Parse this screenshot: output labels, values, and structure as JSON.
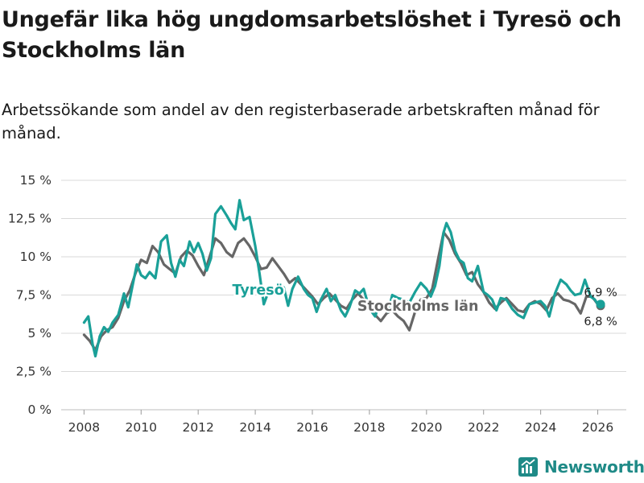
{
  "title": "Ungefär lika hög ungdomsarbetslöshet i Tyresö och Stockholms län",
  "subtitle": "Arbetssökande som andel av den registerbaserade arbetskraften månad för månad.",
  "brand": {
    "name": "Newsworthy",
    "icon": "bar-chart-logo-icon",
    "color": "#1f8a87"
  },
  "chart_data": {
    "type": "line",
    "title": "Ungefär lika hög ungdomsarbetslöshet i Tyresö och Stockholms län",
    "xlabel": "",
    "ylabel": "",
    "xlim": [
      2007.2,
      2027.0
    ],
    "ylim": [
      0,
      15
    ],
    "grid": true,
    "x_ticks": [
      2008,
      2010,
      2012,
      2014,
      2016,
      2018,
      2020,
      2022,
      2024,
      2026
    ],
    "x_tick_labels": [
      "2008",
      "2010",
      "2012",
      "2014",
      "2016",
      "2018",
      "2020",
      "2022",
      "2024",
      "2026"
    ],
    "y_ticks": [
      0,
      2.5,
      5,
      7.5,
      10,
      12.5,
      15
    ],
    "y_tick_labels": [
      "0 %",
      "2,5 %",
      "5 %",
      "7,5 %",
      "10 %",
      "12,5 %",
      "15 %"
    ],
    "series": [
      {
        "name": "Stockholms län",
        "color": "#666666",
        "label": "Stockholms län",
        "end_label": "6,8 %",
        "points": [
          [
            2008.0,
            4.9
          ],
          [
            2008.2,
            4.5
          ],
          [
            2008.4,
            3.9
          ],
          [
            2008.6,
            4.8
          ],
          [
            2008.8,
            5.2
          ],
          [
            2009.0,
            5.4
          ],
          [
            2009.2,
            6.0
          ],
          [
            2009.4,
            7.1
          ],
          [
            2009.6,
            7.8
          ],
          [
            2009.8,
            8.9
          ],
          [
            2010.0,
            9.8
          ],
          [
            2010.2,
            9.6
          ],
          [
            2010.4,
            10.7
          ],
          [
            2010.6,
            10.3
          ],
          [
            2010.8,
            9.5
          ],
          [
            2011.0,
            9.2
          ],
          [
            2011.2,
            8.9
          ],
          [
            2011.4,
            10.0
          ],
          [
            2011.6,
            10.4
          ],
          [
            2011.8,
            10.1
          ],
          [
            2012.0,
            9.4
          ],
          [
            2012.2,
            8.8
          ],
          [
            2012.4,
            10.0
          ],
          [
            2012.6,
            11.2
          ],
          [
            2012.8,
            10.9
          ],
          [
            2013.0,
            10.3
          ],
          [
            2013.2,
            10.0
          ],
          [
            2013.4,
            10.9
          ],
          [
            2013.6,
            11.2
          ],
          [
            2013.8,
            10.7
          ],
          [
            2014.0,
            10.0
          ],
          [
            2014.2,
            9.2
          ],
          [
            2014.4,
            9.3
          ],
          [
            2014.6,
            9.9
          ],
          [
            2014.8,
            9.4
          ],
          [
            2015.0,
            8.9
          ],
          [
            2015.2,
            8.3
          ],
          [
            2015.4,
            8.6
          ],
          [
            2015.6,
            8.2
          ],
          [
            2015.8,
            7.8
          ],
          [
            2016.0,
            7.4
          ],
          [
            2016.2,
            6.9
          ],
          [
            2016.4,
            7.3
          ],
          [
            2016.6,
            7.6
          ],
          [
            2016.8,
            7.2
          ],
          [
            2017.0,
            6.8
          ],
          [
            2017.2,
            6.6
          ],
          [
            2017.4,
            7.2
          ],
          [
            2017.6,
            7.6
          ],
          [
            2017.8,
            7.2
          ],
          [
            2018.0,
            6.6
          ],
          [
            2018.2,
            6.2
          ],
          [
            2018.4,
            5.8
          ],
          [
            2018.6,
            6.3
          ],
          [
            2018.8,
            6.5
          ],
          [
            2019.0,
            6.1
          ],
          [
            2019.2,
            5.8
          ],
          [
            2019.4,
            5.2
          ],
          [
            2019.6,
            6.4
          ],
          [
            2019.8,
            7.2
          ],
          [
            2020.0,
            7.3
          ],
          [
            2020.2,
            7.9
          ],
          [
            2020.4,
            9.8
          ],
          [
            2020.6,
            11.6
          ],
          [
            2020.8,
            11.1
          ],
          [
            2021.0,
            10.2
          ],
          [
            2021.2,
            9.6
          ],
          [
            2021.4,
            8.8
          ],
          [
            2021.6,
            9.0
          ],
          [
            2021.8,
            8.2
          ],
          [
            2022.0,
            7.7
          ],
          [
            2022.2,
            7.0
          ],
          [
            2022.4,
            6.6
          ],
          [
            2022.6,
            7.0
          ],
          [
            2022.8,
            7.3
          ],
          [
            2023.0,
            6.9
          ],
          [
            2023.2,
            6.5
          ],
          [
            2023.4,
            6.4
          ],
          [
            2023.6,
            6.9
          ],
          [
            2023.8,
            7.1
          ],
          [
            2024.0,
            6.9
          ],
          [
            2024.2,
            6.5
          ],
          [
            2024.4,
            7.3
          ],
          [
            2024.6,
            7.6
          ],
          [
            2024.8,
            7.2
          ],
          [
            2025.0,
            7.1
          ],
          [
            2025.2,
            6.9
          ],
          [
            2025.4,
            6.3
          ],
          [
            2025.6,
            7.4
          ],
          [
            2025.8,
            7.4
          ],
          [
            2026.0,
            6.9
          ],
          [
            2026.1,
            6.8
          ]
        ]
      },
      {
        "name": "Tyresö",
        "color": "#1aa098",
        "label": "Tyresö",
        "end_label": "6,9 %",
        "points": [
          [
            2008.0,
            5.7
          ],
          [
            2008.15,
            6.1
          ],
          [
            2008.3,
            4.3
          ],
          [
            2008.4,
            3.5
          ],
          [
            2008.55,
            4.8
          ],
          [
            2008.7,
            5.4
          ],
          [
            2008.85,
            5.1
          ],
          [
            2009.0,
            5.7
          ],
          [
            2009.2,
            6.2
          ],
          [
            2009.4,
            7.6
          ],
          [
            2009.55,
            6.7
          ],
          [
            2009.7,
            8.1
          ],
          [
            2009.85,
            9.5
          ],
          [
            2010.0,
            8.8
          ],
          [
            2010.15,
            8.6
          ],
          [
            2010.3,
            9.0
          ],
          [
            2010.5,
            8.6
          ],
          [
            2010.7,
            11.0
          ],
          [
            2010.9,
            11.4
          ],
          [
            2011.05,
            9.6
          ],
          [
            2011.2,
            8.7
          ],
          [
            2011.35,
            9.8
          ],
          [
            2011.5,
            9.4
          ],
          [
            2011.7,
            11.0
          ],
          [
            2011.85,
            10.3
          ],
          [
            2012.0,
            10.9
          ],
          [
            2012.15,
            10.2
          ],
          [
            2012.3,
            9.1
          ],
          [
            2012.45,
            9.9
          ],
          [
            2012.6,
            12.8
          ],
          [
            2012.8,
            13.3
          ],
          [
            2013.0,
            12.7
          ],
          [
            2013.15,
            12.2
          ],
          [
            2013.3,
            11.8
          ],
          [
            2013.45,
            13.7
          ],
          [
            2013.6,
            12.4
          ],
          [
            2013.8,
            12.6
          ],
          [
            2014.0,
            10.7
          ],
          [
            2014.15,
            8.9
          ],
          [
            2014.3,
            6.9
          ],
          [
            2014.5,
            7.9
          ],
          [
            2014.65,
            7.7
          ],
          [
            2014.8,
            8.1
          ],
          [
            2015.0,
            8.0
          ],
          [
            2015.15,
            6.8
          ],
          [
            2015.3,
            7.9
          ],
          [
            2015.5,
            8.7
          ],
          [
            2015.7,
            7.9
          ],
          [
            2015.85,
            7.5
          ],
          [
            2016.0,
            7.3
          ],
          [
            2016.15,
            6.4
          ],
          [
            2016.3,
            7.2
          ],
          [
            2016.5,
            7.9
          ],
          [
            2016.65,
            7.1
          ],
          [
            2016.8,
            7.5
          ],
          [
            2017.0,
            6.5
          ],
          [
            2017.15,
            6.1
          ],
          [
            2017.3,
            6.7
          ],
          [
            2017.5,
            7.8
          ],
          [
            2017.65,
            7.6
          ],
          [
            2017.8,
            7.9
          ],
          [
            2018.0,
            6.6
          ],
          [
            2018.2,
            6.1
          ],
          [
            2018.35,
            6.9
          ],
          [
            2018.5,
            6.7
          ],
          [
            2018.65,
            6.4
          ],
          [
            2018.8,
            7.5
          ],
          [
            2019.0,
            7.3
          ],
          [
            2019.2,
            7.2
          ],
          [
            2019.4,
            7.0
          ],
          [
            2019.6,
            7.7
          ],
          [
            2019.8,
            8.3
          ],
          [
            2020.0,
            7.9
          ],
          [
            2020.15,
            7.4
          ],
          [
            2020.3,
            8.1
          ],
          [
            2020.45,
            9.4
          ],
          [
            2020.6,
            11.6
          ],
          [
            2020.7,
            12.2
          ],
          [
            2020.85,
            11.6
          ],
          [
            2021.0,
            10.4
          ],
          [
            2021.15,
            9.8
          ],
          [
            2021.3,
            9.6
          ],
          [
            2021.45,
            8.6
          ],
          [
            2021.6,
            8.4
          ],
          [
            2021.8,
            9.4
          ],
          [
            2022.0,
            7.7
          ],
          [
            2022.15,
            7.5
          ],
          [
            2022.3,
            7.2
          ],
          [
            2022.45,
            6.5
          ],
          [
            2022.6,
            7.3
          ],
          [
            2022.8,
            7.2
          ],
          [
            2023.0,
            6.6
          ],
          [
            2023.2,
            6.2
          ],
          [
            2023.4,
            6.0
          ],
          [
            2023.6,
            6.9
          ],
          [
            2023.8,
            7.0
          ],
          [
            2024.0,
            7.1
          ],
          [
            2024.15,
            6.8
          ],
          [
            2024.3,
            6.1
          ],
          [
            2024.5,
            7.6
          ],
          [
            2024.7,
            8.5
          ],
          [
            2024.9,
            8.2
          ],
          [
            2025.05,
            7.8
          ],
          [
            2025.2,
            7.5
          ],
          [
            2025.4,
            7.6
          ],
          [
            2025.55,
            8.5
          ],
          [
            2025.75,
            7.4
          ],
          [
            2025.9,
            7.2
          ],
          [
            2026.0,
            6.9
          ],
          [
            2026.1,
            6.9
          ]
        ]
      }
    ]
  }
}
